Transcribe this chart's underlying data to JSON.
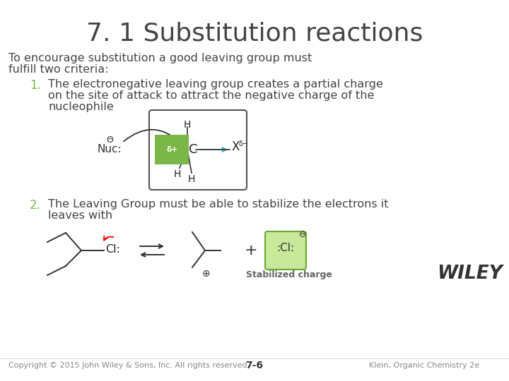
{
  "title": "7. 1 Substitution reactions",
  "bg_color": "#ffffff",
  "text_color": "#444444",
  "green_color": "#7ab648",
  "intro_line1": "To encourage substitution a good leaving group must",
  "intro_line2": "fulfill two criteria:",
  "item1_num": "1.",
  "item1_line1": "The electronegative leaving group creates a partial charge",
  "item1_line2": "on the site of attack to attract the negative charge of the",
  "item1_line3": "nucleophile",
  "item2_num": "2.",
  "item2_line1": "The Leaving Group must be able to stabilize the electrons it",
  "item2_line2": "leaves with",
  "stabilized_label": "Stabilized charge",
  "wiley_text": "WILEY",
  "copyright_text": "Copyright © 2015 John Wiley & Sons, Inc. All rights reserved.",
  "page_num": "7-6",
  "klein_text": "Klein, Organic Chemistry 2e",
  "title_fontsize": 26,
  "body_fontsize": 11.5,
  "num_fontsize": 12,
  "small_fontsize": 8
}
